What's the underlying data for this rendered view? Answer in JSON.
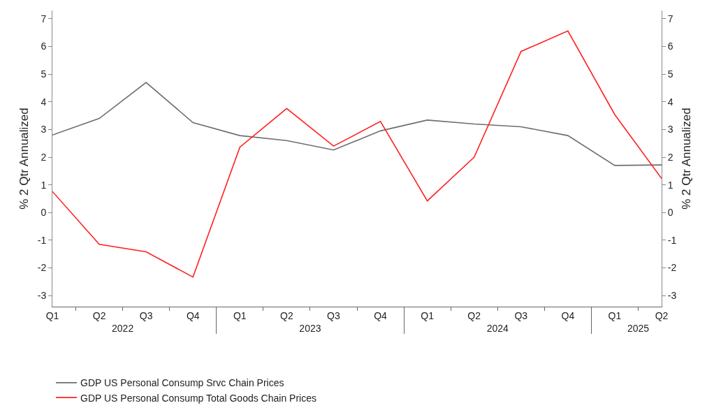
{
  "chart_data": {
    "type": "line",
    "categories": [
      "Q1",
      "Q2",
      "Q3",
      "Q4",
      "Q1",
      "Q2",
      "Q3",
      "Q4",
      "Q1",
      "Q2",
      "Q3",
      "Q4",
      "Q1",
      "Q2"
    ],
    "annotations": [
      "2022",
      "2023",
      "2024",
      "2025"
    ],
    "ylabel": "% 2 Qtr Annualized",
    "y2label": "% 2 Qtr Annualized",
    "ylim": [
      -3.4,
      7.3
    ],
    "yticks": [
      -3,
      -2,
      -1,
      0,
      1,
      2,
      3,
      4,
      5,
      6,
      7
    ],
    "y2lim": [
      -3.4,
      7.3
    ],
    "y2ticks": [
      -3,
      -2,
      -1,
      0,
      1,
      2,
      3,
      4,
      5,
      6,
      7
    ],
    "series": [
      {
        "name": "GDP US Personal Consump Srvc Chain Prices",
        "color": "#6e6e6e",
        "values": [
          2.8,
          3.4,
          4.7,
          3.25,
          2.78,
          2.6,
          2.26,
          2.95,
          3.34,
          3.2,
          3.1,
          2.78,
          1.7,
          1.72
        ]
      },
      {
        "name": "GDP US Personal Consump Total Goods Chain Prices",
        "color": "#ff2020",
        "values": [
          0.76,
          -1.15,
          -1.42,
          -2.33,
          2.36,
          3.76,
          2.4,
          3.29,
          0.42,
          2.0,
          5.82,
          6.56,
          3.54,
          1.23
        ]
      }
    ],
    "grid": false,
    "legend": "bottom left",
    "marker": "none",
    "line_style": "solid"
  }
}
